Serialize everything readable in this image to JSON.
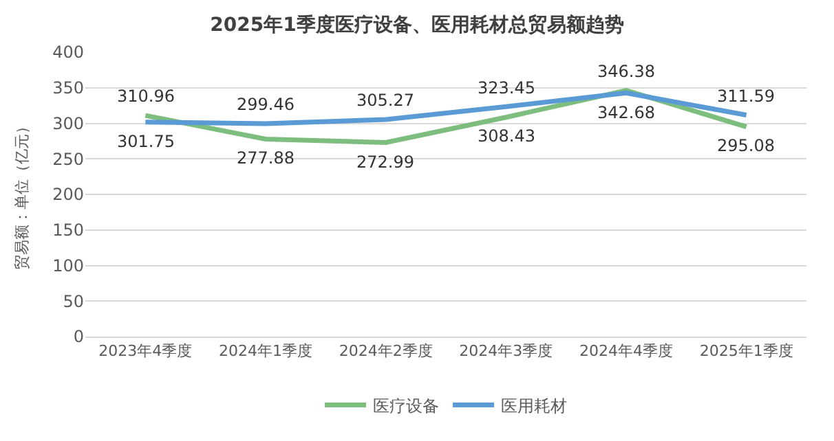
{
  "chart_data": {
    "type": "line",
    "title": "2025年1季度医疗设备、医用耗材总贸易额趋势",
    "ylabel": "贸易额：单位（亿元）",
    "categories": [
      "2023年4季度",
      "2024年1季度",
      "2024年2季度",
      "2024年3季度",
      "2024年4季度",
      "2025年1季度"
    ],
    "series": [
      {
        "name": "医疗设备",
        "color": "#7dbe7f",
        "values": [
          310.96,
          277.88,
          272.99,
          308.43,
          346.38,
          295.08
        ]
      },
      {
        "name": "医用耗材",
        "color": "#5b9bd5",
        "values": [
          301.75,
          299.46,
          305.27,
          323.45,
          342.68,
          311.59
        ]
      }
    ],
    "ylim": [
      0,
      400
    ],
    "yticks": [
      0,
      50,
      100,
      150,
      200,
      250,
      300,
      350,
      400
    ],
    "grid": "y",
    "legend": "bottom",
    "data_labels": true,
    "marker": "none",
    "line_style": "solid"
  }
}
